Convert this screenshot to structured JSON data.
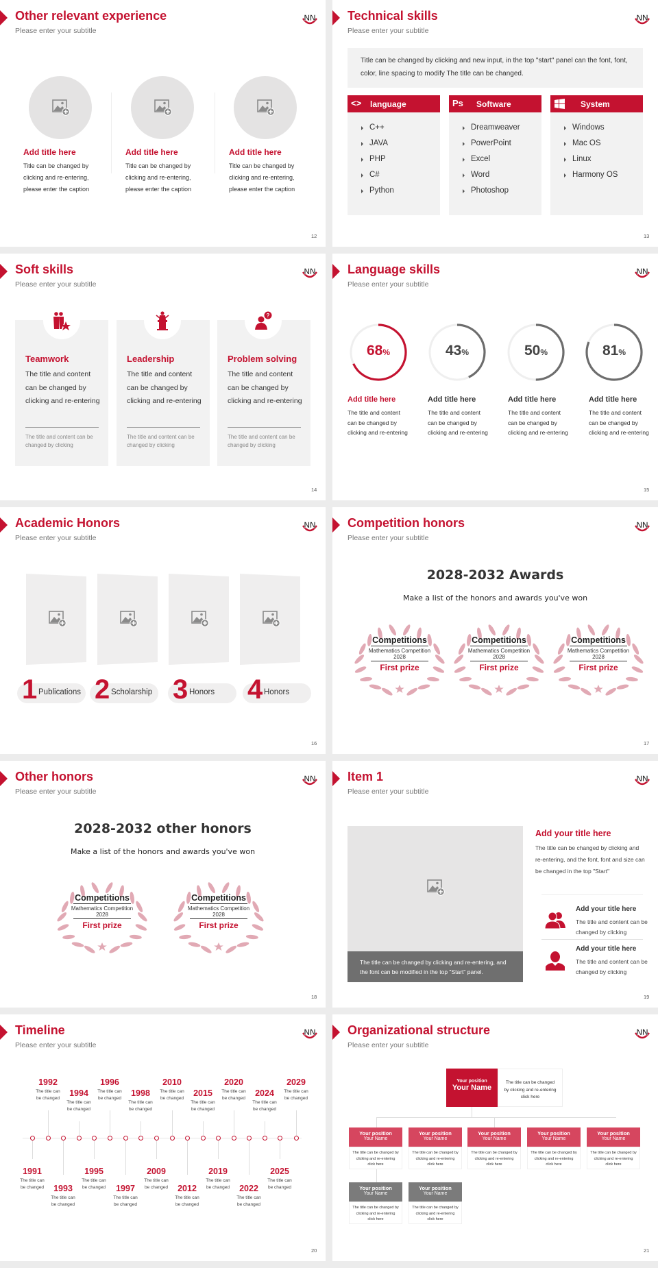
{
  "colors": {
    "accent": "#c41230",
    "accent_light": "#d6465f",
    "gray": "#777777",
    "panel": "#f2f2f2"
  },
  "logo_text": "NN",
  "slides": [
    {
      "type": "experience",
      "title": "Other relevant experience",
      "subtitle": "Please enter your subtitle",
      "page": "12",
      "items": [
        {
          "title": "Add title here",
          "caption": "Title can be changed by clicking and re-entering, please enter the caption"
        },
        {
          "title": "Add title here",
          "caption": "Title can be changed by clicking and re-entering, please enter the caption"
        },
        {
          "title": "Add title here",
          "caption": "Title can be changed by clicking and re-entering, please enter the caption"
        }
      ]
    },
    {
      "type": "technical",
      "title": "Technical skills",
      "subtitle": "Please enter your subtitle",
      "page": "13",
      "intro": "Title can be changed by clicking and new input, in the top \"start\" panel can the font, font, color, line spacing to modify The title can be changed.",
      "columns": [
        {
          "icon": "code-icon",
          "icon_text": "<>",
          "label": "language",
          "items": [
            "C++",
            "JAVA",
            "PHP",
            "C#",
            "Python"
          ]
        },
        {
          "icon": "photoshop-icon",
          "icon_text": "Ps",
          "label": "Software",
          "items": [
            "Dreamweaver",
            "PowerPoint",
            "Excel",
            "Word",
            "Photoshop"
          ]
        },
        {
          "icon": "windows-icon",
          "icon_text": "",
          "label": "System",
          "items": [
            "Windows",
            "Mac OS",
            "Linux",
            "Harmony OS"
          ]
        }
      ]
    },
    {
      "type": "soft",
      "title": "Soft skills",
      "subtitle": "Please enter your subtitle",
      "page": "14",
      "cards": [
        {
          "icon": "teamwork-icon",
          "title": "Teamwork",
          "body": "The title and content can be changed by clicking and re-entering",
          "note": "The title and content can be changed by clicking"
        },
        {
          "icon": "leadership-podium-icon",
          "title": "Leadership",
          "body": "The title and content can be changed by clicking and re-entering",
          "note": "The title and content can be changed by clicking"
        },
        {
          "icon": "problem-solving-icon",
          "title": "Problem solving",
          "body": "The title and content can be changed by clicking and re-entering",
          "note": "The title and content can be changed by clicking"
        }
      ]
    },
    {
      "type": "language",
      "title": "Language skills",
      "subtitle": "Please enter your subtitle",
      "page": "15",
      "items": [
        {
          "percent": 68,
          "value": "68",
          "unit": "%",
          "title": "Add title here",
          "body": "The title and content can be changed by clicking and re-entering",
          "highlight": true
        },
        {
          "percent": 43,
          "value": "43",
          "unit": "%",
          "title": "Add title here",
          "body": "The title and content can be changed by clicking and re-entering",
          "highlight": false
        },
        {
          "percent": 50,
          "value": "50",
          "unit": "%",
          "title": "Add title here",
          "body": "The title and content can be changed by clicking and re-entering",
          "highlight": false
        },
        {
          "percent": 81,
          "value": "81",
          "unit": "%",
          "title": "Add title here",
          "body": "The title and content can be changed by clicking and re-entering",
          "highlight": false
        }
      ]
    },
    {
      "type": "academic",
      "title": "Academic Honors",
      "subtitle": "Please enter your subtitle",
      "page": "16",
      "items": [
        {
          "number": "1",
          "label": "Publications"
        },
        {
          "number": "2",
          "label": "Scholarship"
        },
        {
          "number": "3",
          "label": "Honors"
        },
        {
          "number": "4",
          "label": "Honors"
        }
      ]
    },
    {
      "type": "awards",
      "title": "Competition honors",
      "subtitle": "Please enter your subtitle",
      "page": "17",
      "heading": "2028-2032 Awards",
      "tagline": "Make a list of the honors and awards you've won",
      "badges": [
        {
          "title": "Competitions",
          "line1": "Mathematics Competition",
          "line2": "2028",
          "prize": "First prize"
        },
        {
          "title": "Competitions",
          "line1": "Mathematics Competition",
          "line2": "2028",
          "prize": "First prize"
        },
        {
          "title": "Competitions",
          "line1": "Mathematics Competition",
          "line2": "2028",
          "prize": "First prize"
        }
      ]
    },
    {
      "type": "awards",
      "title": "Other honors",
      "subtitle": "Please enter your subtitle",
      "page": "18",
      "heading": "2028-2032 other honors",
      "tagline": "Make a list of the honors and awards you've won",
      "badges": [
        {
          "title": "Competitions",
          "line1": "Mathematics Competition",
          "line2": "2028",
          "prize": "First prize"
        },
        {
          "title": "Competitions",
          "line1": "Mathematics Competition",
          "line2": "2028",
          "prize": "First prize"
        }
      ]
    },
    {
      "type": "item",
      "title": "Item 1",
      "subtitle": "Please enter your subtitle",
      "page": "19",
      "caption": "The title can be changed by clicking and re-entering, and the font can be modified in the top \"Start\" panel.",
      "main_title": "Add your title here",
      "main_body": "The title can be changed by clicking and re-entering, and the font, font and size can be changed in the top \"Start\"",
      "entries": [
        {
          "icon": "group-users-icon",
          "title": "Add your title here",
          "body": "The title and content can be changed by clicking"
        },
        {
          "icon": "user-icon",
          "title": "Add your title here",
          "body": "The title and content can be changed by clicking"
        }
      ]
    },
    {
      "type": "timeline",
      "title": "Timeline",
      "subtitle": "Please enter your subtitle",
      "page": "20",
      "events": [
        {
          "year": "1991",
          "text": "The title can be changed",
          "side": "bottom"
        },
        {
          "year": "1992",
          "text": "The title can be changed",
          "side": "top"
        },
        {
          "year": "1993",
          "text": "The title can be changed",
          "side": "bottom"
        },
        {
          "year": "1994",
          "text": "The title can be changed",
          "side": "top"
        },
        {
          "year": "1995",
          "text": "The title can be changed",
          "side": "bottom"
        },
        {
          "year": "1996",
          "text": "The title can be changed",
          "side": "top"
        },
        {
          "year": "1997",
          "text": "The title can be changed",
          "side": "bottom"
        },
        {
          "year": "1998",
          "text": "The title can be changed",
          "side": "top"
        },
        {
          "year": "2009",
          "text": "The title can be changed",
          "side": "bottom"
        },
        {
          "year": "2010",
          "text": "The title can be changed",
          "side": "top"
        },
        {
          "year": "2012",
          "text": "The title can be changed",
          "side": "bottom"
        },
        {
          "year": "2015",
          "text": "The title can be changed",
          "side": "top"
        },
        {
          "year": "2019",
          "text": "The title can be changed",
          "side": "bottom"
        },
        {
          "year": "2020",
          "text": "The title can be changed",
          "side": "top"
        },
        {
          "year": "2022",
          "text": "The title can be changed",
          "side": "bottom"
        },
        {
          "year": "2024",
          "text": "The title can be changed",
          "side": "top"
        },
        {
          "year": "2025",
          "text": "The title can be changed",
          "side": "bottom"
        },
        {
          "year": "2029",
          "text": "The title can be changed",
          "side": "top"
        }
      ]
    },
    {
      "type": "org",
      "title": "Organizational structure",
      "subtitle": "Please enter your subtitle",
      "page": "21",
      "head": {
        "position": "Your position",
        "name": "Your Name",
        "note": "The title can be changed by clicking and re-entering click here"
      },
      "row1": [
        {
          "position": "Your position",
          "name": "Your Name",
          "note": "The title can be changed by clicking and re-entering click here"
        },
        {
          "position": "Your position",
          "name": "Your Name",
          "note": "The title can be changed by clicking and re-entering click here"
        },
        {
          "position": "Your position",
          "name": "Your Name",
          "note": "The title can be changed by clicking and re-entering click here"
        },
        {
          "position": "Your position",
          "name": "Your Name",
          "note": "The title can be changed by clicking and re-entering click here"
        },
        {
          "position": "Your position",
          "name": "Your Name",
          "note": "The title can be changed by clicking and re-entering click here"
        }
      ],
      "row2": [
        {
          "position": "Your position",
          "name": "Your Name",
          "note": "The title can be changed by clicking and re-entering click here"
        },
        {
          "position": "Your position",
          "name": "Your Name",
          "note": "The title can be changed by clicking and re-entering click here"
        }
      ]
    }
  ]
}
